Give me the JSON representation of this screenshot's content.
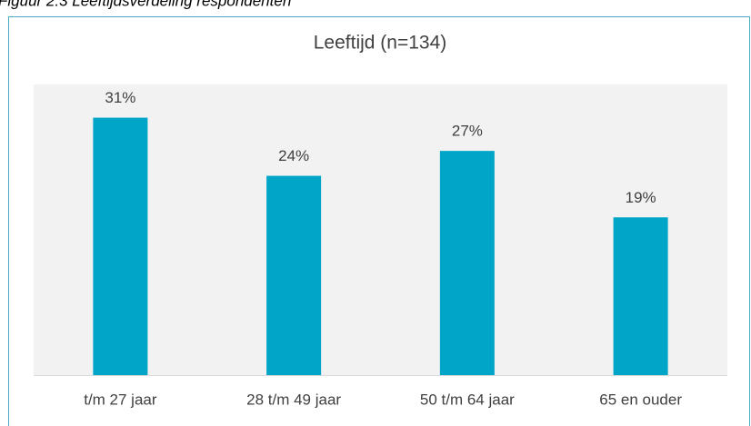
{
  "caption": "Figuur 2.3 Leeftijdsverdeling respondenten",
  "chart_data": {
    "type": "bar",
    "title": "Leeftijd (n=134)",
    "categories": [
      "t/m 27 jaar",
      "28 t/m 49 jaar",
      "50 t/m 64 jaar",
      "65 en ouder"
    ],
    "values": [
      31,
      24,
      27,
      19
    ],
    "value_labels": [
      "31%",
      "24%",
      "27%",
      "19%"
    ],
    "color": "#00a5c8",
    "ylim": [
      0,
      35
    ]
  }
}
